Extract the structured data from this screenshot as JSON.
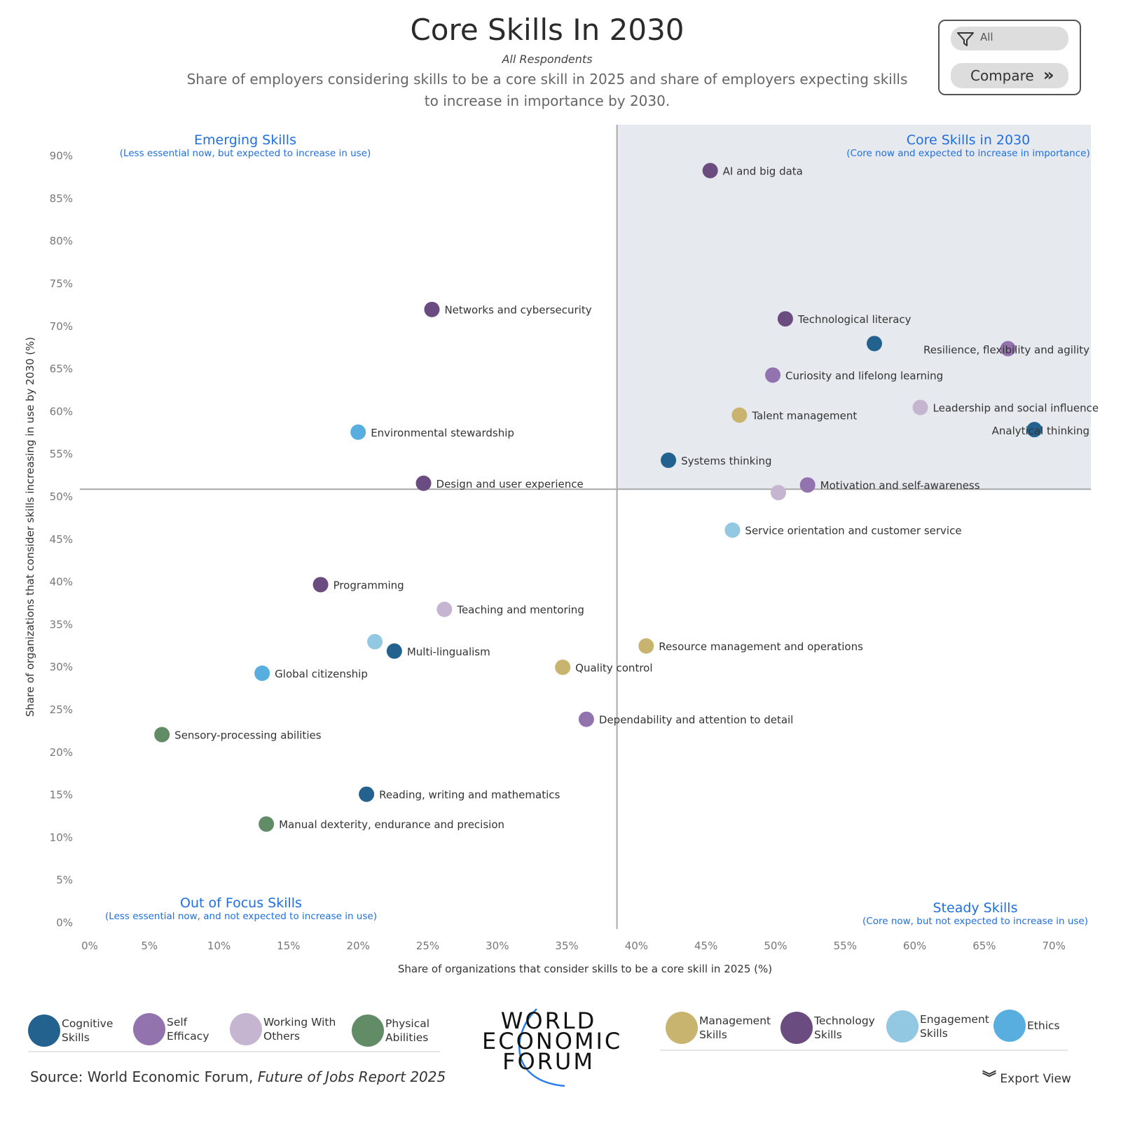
{
  "header": {
    "title": "Core Skills In 2030",
    "subtitle": "All Respondents",
    "description": "Share of employers considering skills to be a core skill in 2025 and share of employers expecting skills to increase in importance by 2030."
  },
  "controls": {
    "filter_icon": "funnel-icon",
    "filter_value": "All",
    "compare_label": "Compare",
    "compare_icon": "double-chevron-right-icon"
  },
  "quadrants": {
    "top_left": {
      "title": "Emerging Skills",
      "subtitle": "(Less essential now, but expected to increase in use)"
    },
    "top_right": {
      "title": "Core Skills in 2030",
      "subtitle": "(Core now and expected to increase in importance)"
    },
    "bottom_left": {
      "title": "Out of Focus Skills",
      "subtitle": "(Less essential now, and not expected to increase in use)"
    },
    "bottom_right": {
      "title": "Steady Skills",
      "subtitle": "(Core now, but not expected to increase in use)"
    }
  },
  "colors": {
    "Cognitive": "#23628f",
    "Self Efficacy": "#9373ad",
    "Working With Others": "#c6b5d1",
    "Physical": "#628c66",
    "Management": "#c9b46f",
    "Technology": "#6b4c80",
    "Engagement": "#93c8e2",
    "Ethics": "#58afdf",
    "quadrant_fill": "#e6eaef",
    "accent": "#1f6fe0"
  },
  "chart_data": {
    "type": "scatter",
    "xlabel": "Share of organizations that consider skills to be a core skill in 2025 (%)",
    "ylabel": "Share of organizations that consider skills increasing in use by 2030 (%)",
    "xlim": [
      0,
      72.5
    ],
    "ylim": [
      0,
      92
    ],
    "x_ticks": [
      "0%",
      "5%",
      "10%",
      "15%",
      "20%",
      "25%",
      "30%",
      "35%",
      "40%",
      "45%",
      "50%",
      "55%",
      "60%",
      "65%",
      "70%"
    ],
    "y_ticks": [
      "0%",
      "5%",
      "10%",
      "15%",
      "20%",
      "25%",
      "30%",
      "35%",
      "40%",
      "45%",
      "50%",
      "55%",
      "60%",
      "65%",
      "70%",
      "75%",
      "80%",
      "85%",
      "90%"
    ],
    "x_divider": 38.6,
    "y_divider": 50.8,
    "grid": false,
    "points": [
      {
        "label": "AI and big data",
        "x": 45.3,
        "y": 88.2,
        "category": "Technology"
      },
      {
        "label": "Networks and cybersecurity",
        "x": 25.3,
        "y": 71.9,
        "category": "Technology"
      },
      {
        "label": "Technological literacy",
        "x": 50.7,
        "y": 70.8,
        "category": "Technology"
      },
      {
        "label": "",
        "x": 57.1,
        "y": 67.9,
        "category": "Cognitive"
      },
      {
        "label": "Resilience, flexibility and agility",
        "x": 66.7,
        "y": 67.3,
        "category": "Self Efficacy"
      },
      {
        "label": "Curiosity and lifelong learning",
        "x": 49.8,
        "y": 64.2,
        "category": "Self Efficacy"
      },
      {
        "label": "Leadership and social influence",
        "x": 60.4,
        "y": 60.4,
        "category": "Working With Others"
      },
      {
        "label": "Talent management",
        "x": 47.4,
        "y": 59.5,
        "category": "Management"
      },
      {
        "label": "Analytical thinking",
        "x": 68.6,
        "y": 57.8,
        "category": "Cognitive"
      },
      {
        "label": "Environmental stewardship",
        "x": 20.0,
        "y": 57.5,
        "category": "Ethics"
      },
      {
        "label": "Systems thinking",
        "x": 42.3,
        "y": 54.2,
        "category": "Cognitive"
      },
      {
        "label": "Design and user experience",
        "x": 24.7,
        "y": 51.5,
        "category": "Technology"
      },
      {
        "label": "Motivation and self-awareness",
        "x": 52.3,
        "y": 51.3,
        "category": "Self Efficacy"
      },
      {
        "label": "",
        "x": 50.2,
        "y": 50.4,
        "category": "Working With Others"
      },
      {
        "label": "Service orientation and customer service",
        "x": 46.9,
        "y": 46.0,
        "category": "Engagement"
      },
      {
        "label": "Programming",
        "x": 17.3,
        "y": 39.6,
        "category": "Technology"
      },
      {
        "label": "Teaching and mentoring",
        "x": 26.2,
        "y": 36.7,
        "category": "Working With Others"
      },
      {
        "label": "",
        "x": 21.2,
        "y": 32.9,
        "category": "Engagement"
      },
      {
        "label": "Multi-lingualism",
        "x": 22.6,
        "y": 31.8,
        "category": "Cognitive"
      },
      {
        "label": "Resource management and operations",
        "x": 40.7,
        "y": 32.4,
        "category": "Management"
      },
      {
        "label": "Quality control",
        "x": 34.7,
        "y": 29.9,
        "category": "Management"
      },
      {
        "label": "Global citizenship",
        "x": 13.1,
        "y": 29.2,
        "category": "Ethics"
      },
      {
        "label": "Dependability and attention to detail",
        "x": 36.4,
        "y": 23.8,
        "category": "Self Efficacy"
      },
      {
        "label": "Sensory-processing abilities",
        "x": 5.9,
        "y": 22.0,
        "category": "Physical"
      },
      {
        "label": "Reading, writing and mathematics",
        "x": 20.6,
        "y": 15.0,
        "category": "Cognitive"
      },
      {
        "label": "Manual dexterity, endurance and precision",
        "x": 13.4,
        "y": 11.5,
        "category": "Physical"
      }
    ]
  },
  "legend": {
    "items": [
      {
        "key": "Cognitive",
        "line1": "Cognitive",
        "line2": "Skills"
      },
      {
        "key": "Self Efficacy",
        "line1": "Self",
        "line2": "Efficacy"
      },
      {
        "key": "Working With Others",
        "line1": "Working With",
        "line2": "Others"
      },
      {
        "key": "Physical",
        "line1": "Physical",
        "line2": "Abilities"
      },
      {
        "key": "Management",
        "line1": "Management",
        "line2": "Skills"
      },
      {
        "key": "Technology",
        "line1": "Technology",
        "line2": "Skills"
      },
      {
        "key": "Engagement",
        "line1": "Engagement",
        "line2": "Skills"
      },
      {
        "key": "Ethics",
        "line1": "Ethics",
        "line2": ""
      }
    ]
  },
  "footer": {
    "source_prefix": "Source: World Economic Forum, ",
    "source_title": "Future of Jobs Report 2025",
    "logo_lines": [
      "WORLD",
      "ECONOMIC",
      "FORUM"
    ],
    "export_label": "Export View",
    "export_icon": "double-chevron-down-icon"
  }
}
